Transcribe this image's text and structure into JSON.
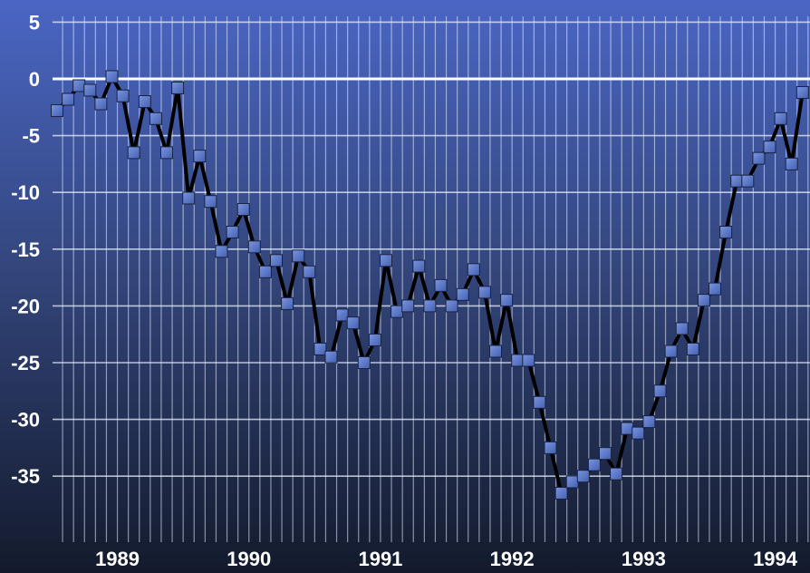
{
  "chart_data": {
    "type": "line",
    "title": "",
    "xlabel": "",
    "ylabel": "",
    "ylim": [
      -40,
      5
    ],
    "y_ticks": [
      "5",
      "0",
      "-5",
      "-10",
      "-15",
      "-20",
      "-25",
      "-30",
      "-35"
    ],
    "x_ticks": [
      "1989",
      "1990",
      "1991",
      "1992",
      "1993",
      "1994"
    ],
    "grid": true,
    "x_unit": "month index from January 1989",
    "series": [
      {
        "values": [
          -2.8,
          -1.8,
          -0.6,
          -1.0,
          -2.2,
          0.2,
          -1.5,
          -6.5,
          -2.0,
          -3.5,
          -6.5,
          -0.8,
          -10.5,
          -6.8,
          -10.8,
          -15.2,
          -13.5,
          -11.5,
          -14.8,
          -17.0,
          -16.0,
          -19.8,
          -15.6,
          -17.0,
          -23.8,
          -24.5,
          -20.8,
          -21.5,
          -25.0,
          -23.0,
          -16.0,
          -20.5,
          -20.0,
          -16.5,
          -20.0,
          -18.2,
          -20.0,
          -19.0,
          -16.8,
          -18.8,
          -24.0,
          -19.5,
          -24.8,
          -24.8,
          -28.5,
          -32.5,
          -36.5,
          -35.5,
          -35.0,
          -34.0,
          -33.0,
          -34.8,
          -30.8,
          -31.2,
          -30.2,
          -27.5,
          -24.0,
          -22.0,
          -23.8,
          -19.5,
          -18.5,
          -13.5,
          -9.0,
          -9.0,
          -7.0,
          -6.0,
          -3.5,
          -7.5,
          -1.2
        ],
        "color": "#000000",
        "marker_color": "#5a78c8"
      }
    ]
  }
}
